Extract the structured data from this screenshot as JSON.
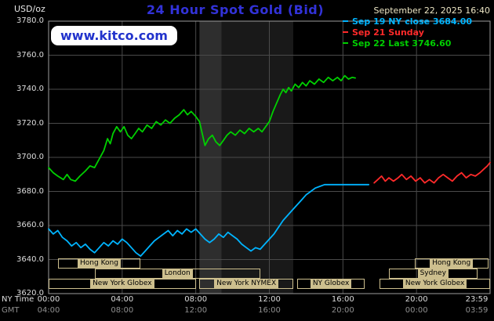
{
  "header": {
    "units": "USD/oz",
    "title": "24 Hour Spot Gold (Bid)",
    "datetime": "September 22, 2025 16:40",
    "watermark": "www.kitco.com"
  },
  "colors": {
    "title_blue": "#3232d8",
    "link_blue": "#2233cc",
    "cyan": "#00b4ff",
    "red": "#ff2a2a",
    "green": "#00cf00",
    "session_tan": "#cdbf8e",
    "grid_gray": "#4a4a4a",
    "border_gray": "#9c9c9c"
  },
  "legend": [
    {
      "label": "Sep 19 NY close 3684.00",
      "color": "#00b4ff"
    },
    {
      "label": "Sep 21 Sunday",
      "color": "#ff2a2a"
    },
    {
      "label": "Sep 22 Last 3746.60",
      "color": "#00cf00"
    }
  ],
  "axes": {
    "y_ticks": [
      "3780.0",
      "3760.0",
      "3740.0",
      "3720.0",
      "3700.0",
      "3680.0",
      "3660.0",
      "3640.0",
      "3620.0"
    ],
    "x_tick_hours": [
      0,
      4,
      8,
      12,
      16,
      20,
      24
    ],
    "x_rows": [
      {
        "name": "NY Time",
        "ticks": [
          "00:00",
          "04:00",
          "08:00",
          "12:00",
          "16:00",
          "20:00",
          "23:59"
        ]
      },
      {
        "name": "GMT",
        "ticks": [
          "04:00",
          "08:00",
          "12:00",
          "16:00",
          "20:00",
          "00:00",
          "03:59"
        ]
      }
    ]
  },
  "chart_data": {
    "type": "line",
    "title": "24 Hour Spot Gold (Bid)",
    "x_unit": "NY time (hours)",
    "y_unit": "USD/oz",
    "xlim": [
      0,
      24
    ],
    "ylim": [
      3620,
      3780
    ],
    "grid": true,
    "legend_position": "top-right",
    "series": [
      {
        "name": "Sep 19 NY close 3684.00",
        "color": "#00b4ff",
        "points": [
          [
            0,
            3658
          ],
          [
            0.25,
            3655
          ],
          [
            0.5,
            3657
          ],
          [
            0.75,
            3653
          ],
          [
            1,
            3651
          ],
          [
            1.25,
            3648
          ],
          [
            1.5,
            3650
          ],
          [
            1.75,
            3647
          ],
          [
            2,
            3649
          ],
          [
            2.25,
            3646
          ],
          [
            2.5,
            3644
          ],
          [
            2.75,
            3647
          ],
          [
            3,
            3650
          ],
          [
            3.25,
            3648
          ],
          [
            3.5,
            3651
          ],
          [
            3.75,
            3649
          ],
          [
            4,
            3652
          ],
          [
            4.25,
            3650
          ],
          [
            4.5,
            3647
          ],
          [
            4.75,
            3644
          ],
          [
            5,
            3642
          ],
          [
            5.25,
            3645
          ],
          [
            5.5,
            3648
          ],
          [
            5.75,
            3651
          ],
          [
            6,
            3653
          ],
          [
            6.25,
            3655
          ],
          [
            6.5,
            3657
          ],
          [
            6.75,
            3654
          ],
          [
            7,
            3657
          ],
          [
            7.25,
            3655
          ],
          [
            7.5,
            3658
          ],
          [
            7.75,
            3656
          ],
          [
            8,
            3658
          ],
          [
            8.25,
            3655
          ],
          [
            8.5,
            3652
          ],
          [
            8.75,
            3650
          ],
          [
            9,
            3652
          ],
          [
            9.25,
            3655
          ],
          [
            9.5,
            3653
          ],
          [
            9.75,
            3656
          ],
          [
            10,
            3654
          ],
          [
            10.25,
            3652
          ],
          [
            10.5,
            3649
          ],
          [
            10.75,
            3647
          ],
          [
            11,
            3645
          ],
          [
            11.25,
            3647
          ],
          [
            11.5,
            3646
          ],
          [
            11.75,
            3649
          ],
          [
            12,
            3652
          ],
          [
            12.25,
            3655
          ],
          [
            12.5,
            3659
          ],
          [
            12.75,
            3663
          ],
          [
            13,
            3666
          ],
          [
            13.25,
            3669
          ],
          [
            13.5,
            3672
          ],
          [
            13.75,
            3675
          ],
          [
            14,
            3678
          ],
          [
            14.25,
            3680
          ],
          [
            14.5,
            3682
          ],
          [
            14.75,
            3683
          ],
          [
            15,
            3684
          ],
          [
            15.5,
            3684
          ],
          [
            16,
            3684
          ],
          [
            16.5,
            3684
          ],
          [
            17,
            3684
          ],
          [
            17.4,
            3684
          ]
        ]
      },
      {
        "name": "Sep 21 Sunday",
        "color": "#ff2a2a",
        "points": [
          [
            17.7,
            3685
          ],
          [
            17.9,
            3687
          ],
          [
            18.1,
            3689
          ],
          [
            18.3,
            3686
          ],
          [
            18.5,
            3688
          ],
          [
            18.75,
            3686
          ],
          [
            19,
            3688
          ],
          [
            19.2,
            3690
          ],
          [
            19.45,
            3687
          ],
          [
            19.7,
            3689
          ],
          [
            19.95,
            3686
          ],
          [
            20.2,
            3688
          ],
          [
            20.45,
            3685
          ],
          [
            20.7,
            3687
          ],
          [
            20.95,
            3685
          ],
          [
            21.2,
            3688
          ],
          [
            21.45,
            3690
          ],
          [
            21.7,
            3688
          ],
          [
            21.95,
            3686
          ],
          [
            22.2,
            3689
          ],
          [
            22.45,
            3691
          ],
          [
            22.7,
            3688
          ],
          [
            22.95,
            3690
          ],
          [
            23.2,
            3689
          ],
          [
            23.45,
            3691
          ],
          [
            23.65,
            3693
          ],
          [
            23.85,
            3695
          ],
          [
            24,
            3697
          ]
        ]
      },
      {
        "name": "Sep 22 Last 3746.60",
        "color": "#00cf00",
        "points": [
          [
            0,
            3694
          ],
          [
            0.25,
            3691
          ],
          [
            0.5,
            3689
          ],
          [
            0.8,
            3687
          ],
          [
            1,
            3690
          ],
          [
            1.2,
            3687
          ],
          [
            1.45,
            3686
          ],
          [
            1.7,
            3689
          ],
          [
            2,
            3692
          ],
          [
            2.25,
            3695
          ],
          [
            2.5,
            3694
          ],
          [
            2.75,
            3699
          ],
          [
            3,
            3704
          ],
          [
            3.2,
            3711
          ],
          [
            3.35,
            3708
          ],
          [
            3.5,
            3714
          ],
          [
            3.7,
            3718
          ],
          [
            3.9,
            3715
          ],
          [
            4.1,
            3718
          ],
          [
            4.3,
            3713
          ],
          [
            4.5,
            3711
          ],
          [
            4.7,
            3714
          ],
          [
            4.9,
            3717
          ],
          [
            5.1,
            3715
          ],
          [
            5.35,
            3719
          ],
          [
            5.6,
            3717
          ],
          [
            5.85,
            3721
          ],
          [
            6.1,
            3719
          ],
          [
            6.35,
            3722
          ],
          [
            6.6,
            3720
          ],
          [
            6.85,
            3723
          ],
          [
            7.1,
            3725
          ],
          [
            7.35,
            3728
          ],
          [
            7.55,
            3725
          ],
          [
            7.75,
            3727
          ],
          [
            8,
            3724
          ],
          [
            8.2,
            3721
          ],
          [
            8.35,
            3714
          ],
          [
            8.5,
            3707
          ],
          [
            8.7,
            3711
          ],
          [
            8.9,
            3713
          ],
          [
            9.1,
            3709
          ],
          [
            9.3,
            3707
          ],
          [
            9.5,
            3710
          ],
          [
            9.7,
            3713
          ],
          [
            9.9,
            3715
          ],
          [
            10.15,
            3713
          ],
          [
            10.4,
            3716
          ],
          [
            10.65,
            3714
          ],
          [
            10.9,
            3717
          ],
          [
            11.15,
            3715
          ],
          [
            11.4,
            3717
          ],
          [
            11.6,
            3715
          ],
          [
            11.8,
            3718
          ],
          [
            12,
            3721
          ],
          [
            12.2,
            3727
          ],
          [
            12.4,
            3732
          ],
          [
            12.6,
            3737
          ],
          [
            12.75,
            3740
          ],
          [
            12.9,
            3738
          ],
          [
            13.05,
            3741
          ],
          [
            13.2,
            3739
          ],
          [
            13.4,
            3743
          ],
          [
            13.6,
            3741
          ],
          [
            13.8,
            3744
          ],
          [
            14,
            3742
          ],
          [
            14.2,
            3745
          ],
          [
            14.45,
            3743
          ],
          [
            14.7,
            3746
          ],
          [
            14.95,
            3744
          ],
          [
            15.2,
            3747
          ],
          [
            15.45,
            3745
          ],
          [
            15.7,
            3747
          ],
          [
            15.9,
            3745
          ],
          [
            16.1,
            3748
          ],
          [
            16.3,
            3746
          ],
          [
            16.5,
            3747
          ],
          [
            16.67,
            3746.6
          ]
        ]
      }
    ],
    "shaded_bands": [
      {
        "start": 8.2,
        "end": 9.4,
        "color": "#2e2e2e"
      },
      {
        "start": 9.4,
        "end": 13.3,
        "color": "#191919"
      }
    ],
    "sessions": [
      {
        "label": "Hong Kong",
        "row": 1,
        "start": 0.5,
        "end": 5.0
      },
      {
        "label": "Hong Kong",
        "row": 1,
        "start": 19.9,
        "end": 23.9
      },
      {
        "label": "London",
        "row": 2,
        "start": 2.5,
        "end": 11.5
      },
      {
        "label": "Sydney",
        "row": 2,
        "start": 18.5,
        "end": 23.3
      },
      {
        "label": "New York Globex",
        "row": 3,
        "start": 0.0,
        "end": 8.0
      },
      {
        "label": "New York NYMEX",
        "row": 3,
        "start": 8.2,
        "end": 13.3
      },
      {
        "label": "NY Globex",
        "row": 3,
        "start": 13.5,
        "end": 17.2
      },
      {
        "label": "New York Globex",
        "row": 3,
        "start": 18.0,
        "end": 24.0
      }
    ]
  }
}
